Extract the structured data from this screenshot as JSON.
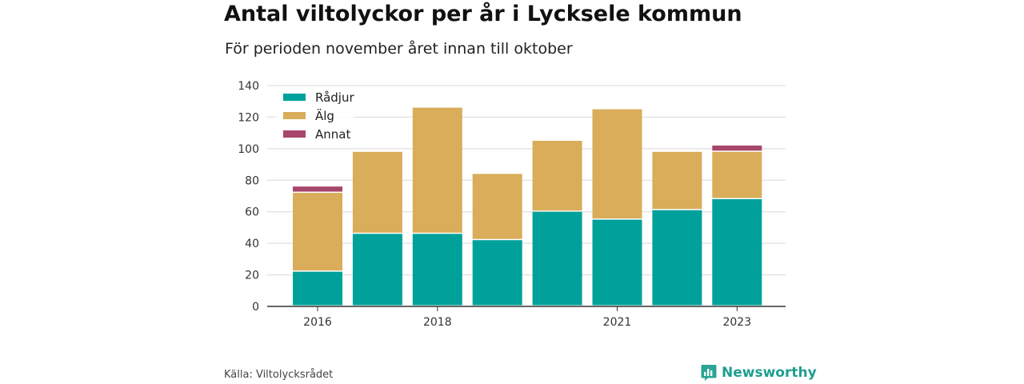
{
  "header": {
    "title": "Antal viltolyckor per år i Lycksele kommun",
    "subtitle": "För perioden november året innan till oktober"
  },
  "footer": {
    "source": "Källa: Viltolycksrådet",
    "brand": "Newsworthy",
    "brand_icon": "chart-bubble-icon"
  },
  "chart_data": {
    "type": "bar",
    "stacked": true,
    "categories": [
      "2016",
      "2017",
      "2018",
      "2019",
      "2020",
      "2021",
      "2022",
      "2023"
    ],
    "x_tick_labels": [
      "2016",
      "",
      "2018",
      "",
      "",
      "2021",
      "",
      "2023"
    ],
    "series": [
      {
        "name": "Rådjur",
        "color": "#00a19a",
        "values": [
          22,
          46,
          46,
          42,
          60,
          55,
          61,
          68
        ]
      },
      {
        "name": "Älg",
        "color": "#d9ad5a",
        "values": [
          50,
          52,
          80,
          42,
          45,
          70,
          37,
          30
        ]
      },
      {
        "name": "Annat",
        "color": "#a8466b",
        "values": [
          4,
          0,
          0,
          0,
          0,
          0,
          0,
          4
        ]
      }
    ],
    "ylim": [
      0,
      140
    ],
    "yticks": [
      0,
      20,
      40,
      60,
      80,
      100,
      120,
      140
    ],
    "grid": true,
    "legend_position": "top-left",
    "xlabel": "",
    "ylabel": ""
  }
}
